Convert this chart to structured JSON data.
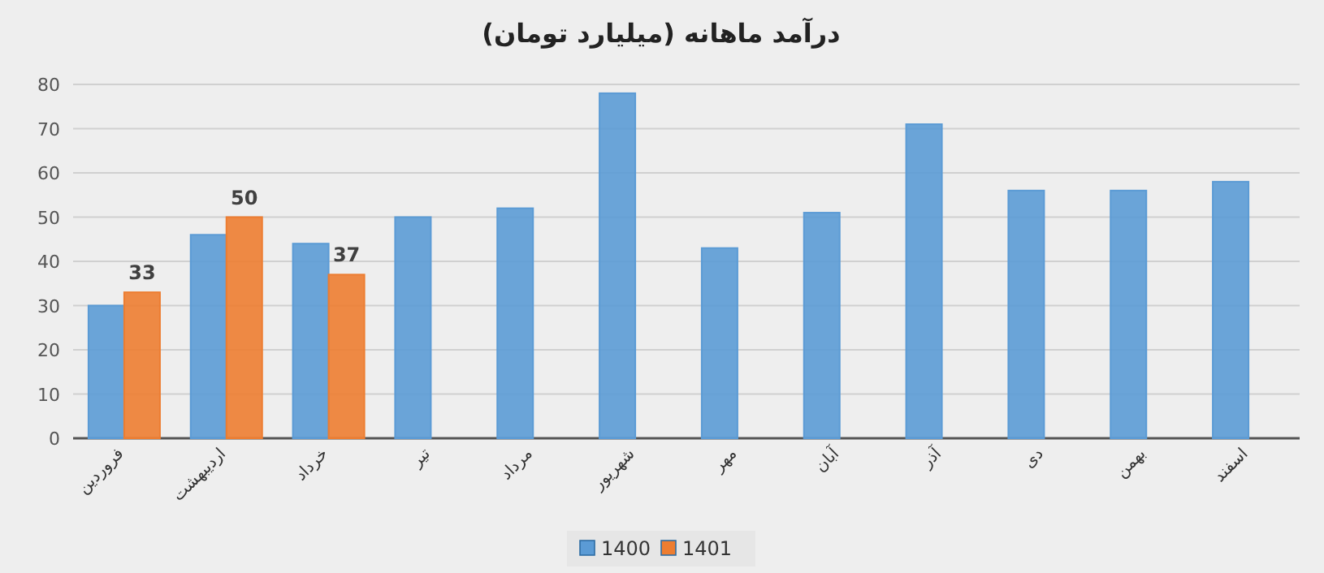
{
  "chart_data": {
    "type": "bar",
    "title": "درآمد ماهانه (میلیارد تومان)",
    "categories": [
      "فروردین",
      "اردیبهشت",
      "خرداد",
      "تیر",
      "مرداد",
      "شهریور",
      "مهر",
      "آبان",
      "آذر",
      "دی",
      "بهمن",
      "اسفند"
    ],
    "series": [
      {
        "name": "1400",
        "color": "#5b9bd5",
        "values": [
          30,
          46,
          44,
          50,
          52,
          78,
          43,
          51,
          71,
          56,
          56,
          58
        ]
      },
      {
        "name": "1401",
        "color": "#ed7d31",
        "values": [
          33,
          50,
          37,
          null,
          null,
          null,
          null,
          null,
          null,
          null,
          null,
          null
        ],
        "value_labels": [
          "33",
          "50",
          "37",
          null,
          null,
          null,
          null,
          null,
          null,
          null,
          null,
          null
        ]
      }
    ],
    "ylim": [
      0,
      80
    ],
    "yticks": [
      0,
      10,
      20,
      30,
      40,
      50,
      60,
      70,
      80
    ],
    "grid": "y",
    "legend": "bottom"
  }
}
